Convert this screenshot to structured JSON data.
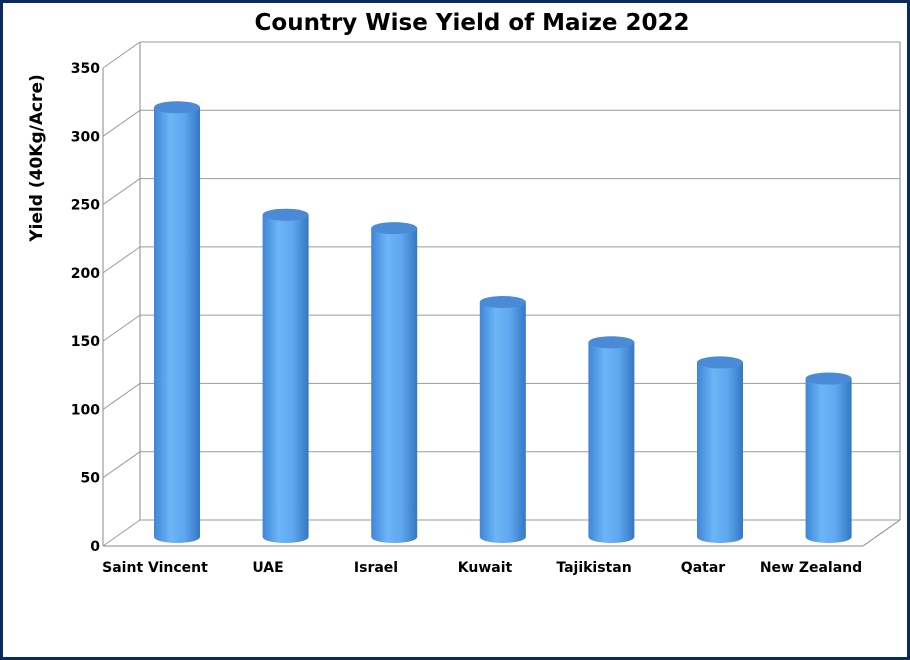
{
  "chart_data": {
    "type": "bar",
    "title": "Country Wise Yield of Maize 2022",
    "xlabel": "",
    "ylabel": "Yield (40Kg/Acre)",
    "categories": [
      "Saint Vincent",
      "UAE",
      "Israel",
      "Kuwait",
      "Tajikistan",
      "Qatar",
      "New Zealand"
    ],
    "values": [
      320,
      240,
      230,
      175,
      145,
      130,
      118
    ],
    "ylim": [
      0,
      350
    ],
    "yticks": [
      "0",
      "50",
      "100",
      "150",
      "200",
      "250",
      "300",
      "350"
    ],
    "grid": true,
    "legend": "none",
    "bar_color": "#5ca8ef",
    "bar_top_color": "#4a8ad6",
    "frame_color": "#0b2a5e"
  }
}
